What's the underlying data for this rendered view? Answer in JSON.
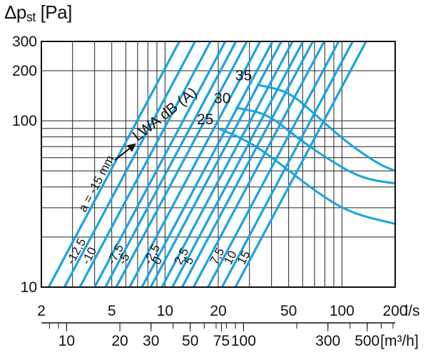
{
  "chart_data": {
    "type": "line",
    "y_axis": {
      "title_prefix": "Δp",
      "title_sub": "st",
      "title_unit": "[Pa]",
      "scale": "log",
      "range": [
        10,
        300
      ],
      "tick_labels": [
        {
          "value": 10,
          "label": "10"
        },
        {
          "value": 100,
          "label": "100"
        },
        {
          "value": 200,
          "label": "200"
        },
        {
          "value": 300,
          "label": "300"
        }
      ]
    },
    "x_axis": {
      "scale": "log",
      "range": [
        2,
        200
      ],
      "unit": "l/s",
      "tick_labels": [
        {
          "value": 2,
          "label": "2"
        },
        {
          "value": 5,
          "label": "5"
        },
        {
          "value": 10,
          "label": "10"
        },
        {
          "value": 20,
          "label": "20"
        },
        {
          "value": 50,
          "label": "50"
        },
        {
          "value": 100,
          "label": "100"
        },
        {
          "value": 200,
          "label": "200"
        }
      ]
    },
    "x2_axis": {
      "scale": "log",
      "unit": "[m³/h]",
      "tick_labels": [
        {
          "value": 10,
          "label": "10"
        },
        {
          "value": 20,
          "label": "20"
        },
        {
          "value": 30,
          "label": "30"
        },
        {
          "value": 50,
          "label": "50"
        },
        {
          "value": 75,
          "label": "75"
        },
        {
          "value": 100,
          "label": "100"
        },
        {
          "value": 300,
          "label": "300"
        },
        {
          "value": 500,
          "label": "500"
        }
      ]
    },
    "grid": true,
    "colors": {
      "series": "#1aa3e0",
      "grid": "#222222"
    },
    "series_label_title": "a = -15 mm",
    "series": [
      {
        "label": "a = -15 mm",
        "q_at_10pa": 2.2
      },
      {
        "label": "-12,5",
        "q_at_10pa": 2.7
      },
      {
        "label": "-10",
        "q_at_10pa": 3.3
      },
      {
        "label": "",
        "q_at_10pa": 4.0
      },
      {
        "label": "-7,5",
        "q_at_10pa": 4.6
      },
      {
        "label": "-5",
        "q_at_10pa": 5.3
      },
      {
        "label": "",
        "q_at_10pa": 6.3
      },
      {
        "label": "-2,5",
        "q_at_10pa": 7.4
      },
      {
        "label": "0",
        "q_at_10pa": 8.3
      },
      {
        "label": "",
        "q_at_10pa": 9.6
      },
      {
        "label": "2,5",
        "q_at_10pa": 11.0
      },
      {
        "label": "5",
        "q_at_10pa": 12.5
      },
      {
        "label": "",
        "q_at_10pa": 14.5
      },
      {
        "label": "7,5",
        "q_at_10pa": 17.5
      },
      {
        "label": "10",
        "q_at_10pa": 21.0
      },
      {
        "label": "15",
        "q_at_10pa": 25.0
      }
    ],
    "annotation": "LWA dB (A)",
    "noise_curves": [
      {
        "label": "25",
        "points": [
          [
            20,
            90
          ],
          [
            30,
            75
          ],
          [
            45,
            55
          ],
          [
            70,
            38
          ],
          [
            110,
            28
          ],
          [
            200,
            24
          ]
        ]
      },
      {
        "label": "30",
        "points": [
          [
            25,
            120
          ],
          [
            38,
            110
          ],
          [
            55,
            80
          ],
          [
            85,
            58
          ],
          [
            130,
            45
          ],
          [
            200,
            42
          ]
        ]
      },
      {
        "label": "35",
        "points": [
          [
            33,
            165
          ],
          [
            50,
            150
          ],
          [
            70,
            110
          ],
          [
            105,
            75
          ],
          [
            160,
            55
          ],
          [
            200,
            50
          ]
        ]
      }
    ]
  }
}
